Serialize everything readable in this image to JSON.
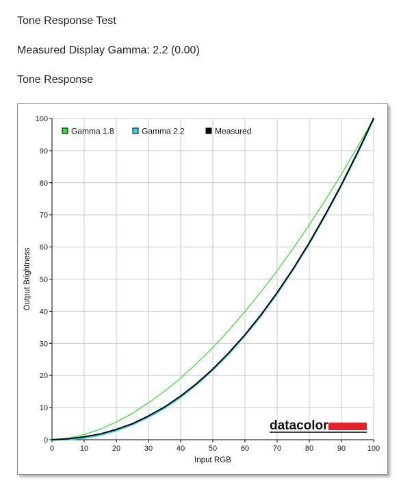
{
  "page": {
    "title": "Tone Response Test",
    "measured_gamma": "Measured Display Gamma: 2.2 (0.00)",
    "section": "Tone Response"
  },
  "colors": {
    "gamma_1_8": "#33dd33",
    "gamma_2_2": "#33d6e8",
    "measured": "#000000",
    "grid": "#c8c8c8",
    "brand_bar": "#e8202a"
  },
  "chart_data": {
    "type": "line",
    "title": "",
    "xlabel": "Input RGB",
    "ylabel": "Output Brightness",
    "xlim": [
      0,
      100
    ],
    "ylim": [
      0,
      100
    ],
    "x_ticks": [
      0,
      10,
      20,
      30,
      40,
      50,
      60,
      70,
      80,
      90,
      100
    ],
    "y_ticks": [
      0,
      10,
      20,
      30,
      40,
      50,
      60,
      70,
      80,
      90,
      100
    ],
    "grid": true,
    "legend_position": "top-left",
    "brand": "datacolor",
    "x": [
      0,
      5,
      10,
      15,
      20,
      25,
      30,
      35,
      40,
      45,
      50,
      55,
      60,
      65,
      70,
      75,
      80,
      85,
      90,
      95,
      100
    ],
    "series": [
      {
        "name": "Gamma 1.8",
        "color": "#33dd33",
        "values": [
          0,
          0.5,
          1.6,
          3.3,
          5.5,
          8.2,
          11.5,
          15.1,
          19.2,
          23.8,
          28.7,
          34.1,
          39.9,
          46.1,
          52.6,
          59.6,
          66.9,
          74.6,
          82.7,
          91.2,
          100
        ]
      },
      {
        "name": "Gamma 2.2",
        "color": "#33d6e8",
        "values": [
          0,
          0.1,
          0.6,
          1.5,
          2.9,
          4.8,
          7.1,
          9.9,
          13.3,
          17.3,
          21.8,
          26.8,
          32.5,
          38.7,
          45.6,
          53.1,
          61.2,
          70.0,
          79.3,
          89.3,
          100
        ]
      },
      {
        "name": "Measured",
        "color": "#000000",
        "values": [
          0,
          0.3,
          0.9,
          1.8,
          3.2,
          5.0,
          7.4,
          10.2,
          13.6,
          17.5,
          22.0,
          27.1,
          32.7,
          38.9,
          45.8,
          53.2,
          61.3,
          70.1,
          79.4,
          89.4,
          100
        ]
      }
    ]
  }
}
